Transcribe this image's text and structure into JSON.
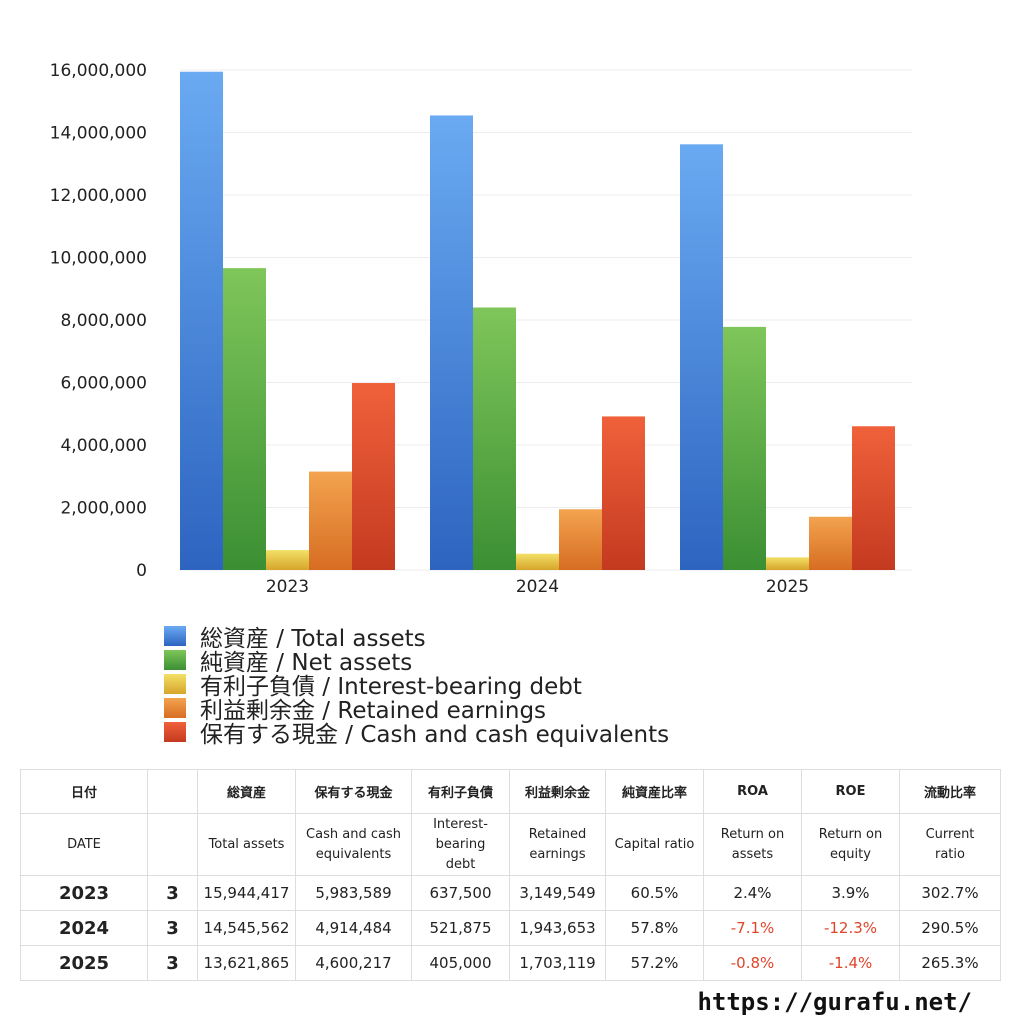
{
  "chart_data": {
    "type": "bar",
    "categories": [
      "2023",
      "2024",
      "2025"
    ],
    "ylim": [
      0,
      16000000
    ],
    "yticks": [
      0,
      2000000,
      4000000,
      6000000,
      8000000,
      10000000,
      12000000,
      14000000,
      16000000
    ],
    "ytick_labels": [
      "0",
      "2,000,000",
      "4,000,000",
      "6,000,000",
      "8,000,000",
      "10,000,000",
      "12,000,000",
      "14,000,000",
      "16,000,000"
    ],
    "grid": true,
    "legend_position": "bottom-left",
    "series": [
      {
        "name": "総資産 / Total assets",
        "color_top": "#6aaaf2",
        "color_bottom": "#2d64c0",
        "values": [
          15944417,
          14545562,
          13621865
        ]
      },
      {
        "name": "純資産 / Net assets",
        "color_top": "#7fc65a",
        "color_bottom": "#3b8f33",
        "values": [
          9660000,
          8400000,
          7780000
        ]
      },
      {
        "name": "有利子負債 / Interest-bearing debt",
        "color_top": "#f3e067",
        "color_bottom": "#d6a52a",
        "values": [
          637500,
          521875,
          405000
        ]
      },
      {
        "name": "利益剰余金 / Retained earnings",
        "color_top": "#f3a34f",
        "color_bottom": "#d76d22",
        "values": [
          3149549,
          1943653,
          1703119
        ]
      },
      {
        "name": "保有する現金 /  Cash and cash equivalents",
        "color_top": "#f0613b",
        "color_bottom": "#c43a20",
        "values": [
          5983589,
          4914484,
          4600217
        ]
      }
    ]
  },
  "table": {
    "header_jp": [
      "日付",
      "",
      "総資産",
      "保有する現金",
      "有利子負債",
      "利益剰余金",
      "純資産比率",
      "ROA",
      "ROE",
      "流動比率"
    ],
    "header_en": [
      "DATE",
      "",
      "Total assets",
      [
        "Cash and cash",
        "equivalents"
      ],
      [
        "Interest-",
        "bearing",
        "debt"
      ],
      [
        "Retained",
        "earnings"
      ],
      "Capital ratio",
      [
        "Return on",
        "assets"
      ],
      [
        "Return on",
        "equity"
      ],
      [
        "Current",
        "ratio"
      ]
    ],
    "rows": [
      {
        "year": "2023",
        "month": "3",
        "total_assets": "15,944,417",
        "cash": "5,983,589",
        "debt": "637,500",
        "retained": "3,149,549",
        "capital_ratio": "60.5%",
        "roa": "2.4%",
        "roe": "3.9%",
        "current_ratio": "302.7%"
      },
      {
        "year": "2024",
        "month": "3",
        "total_assets": "14,545,562",
        "cash": "4,914,484",
        "debt": "521,875",
        "retained": "1,943,653",
        "capital_ratio": "57.8%",
        "roa": "-7.1%",
        "roe": "-12.3%",
        "current_ratio": "290.5%"
      },
      {
        "year": "2025",
        "month": "3",
        "total_assets": "13,621,865",
        "cash": "4,600,217",
        "debt": "405,000",
        "retained": "1,703,119",
        "capital_ratio": "57.2%",
        "roa": "-0.8%",
        "roe": "-1.4%",
        "current_ratio": "265.3%"
      }
    ],
    "negative_color": "#e0442b"
  },
  "footer": {
    "url": "https://gurafu.net/"
  }
}
